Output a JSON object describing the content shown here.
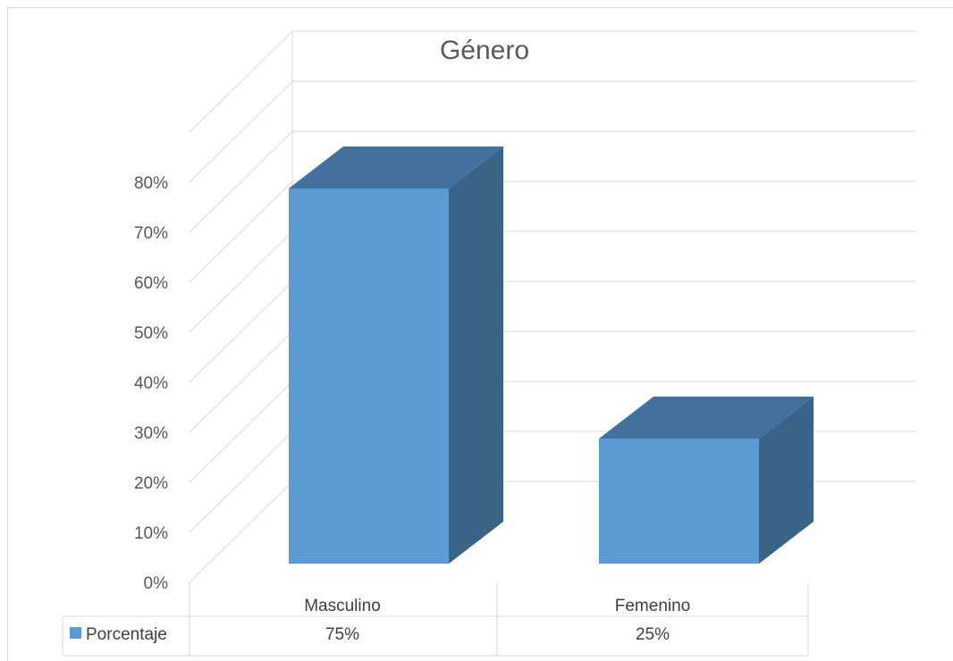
{
  "chart_data": {
    "type": "bar",
    "title": "Género",
    "categories": [
      "Masculino",
      "Femenino"
    ],
    "series": [
      {
        "name": "Porcentaje",
        "values": [
          75,
          25
        ],
        "labels": [
          "75%",
          "25%"
        ],
        "color": "#5b9bd5"
      }
    ],
    "ylim": [
      0,
      80
    ],
    "yticks": [
      "0%",
      "10%",
      "20%",
      "30%",
      "40%",
      "50%",
      "60%",
      "70%",
      "80%"
    ],
    "grid": true,
    "legend": "data-table",
    "three_d": true
  },
  "colors": {
    "bar_front": "#5b9bd5",
    "bar_top": "#41719c",
    "bar_side": "#386487",
    "grid": "#d9d9d9",
    "text": "#595959"
  }
}
